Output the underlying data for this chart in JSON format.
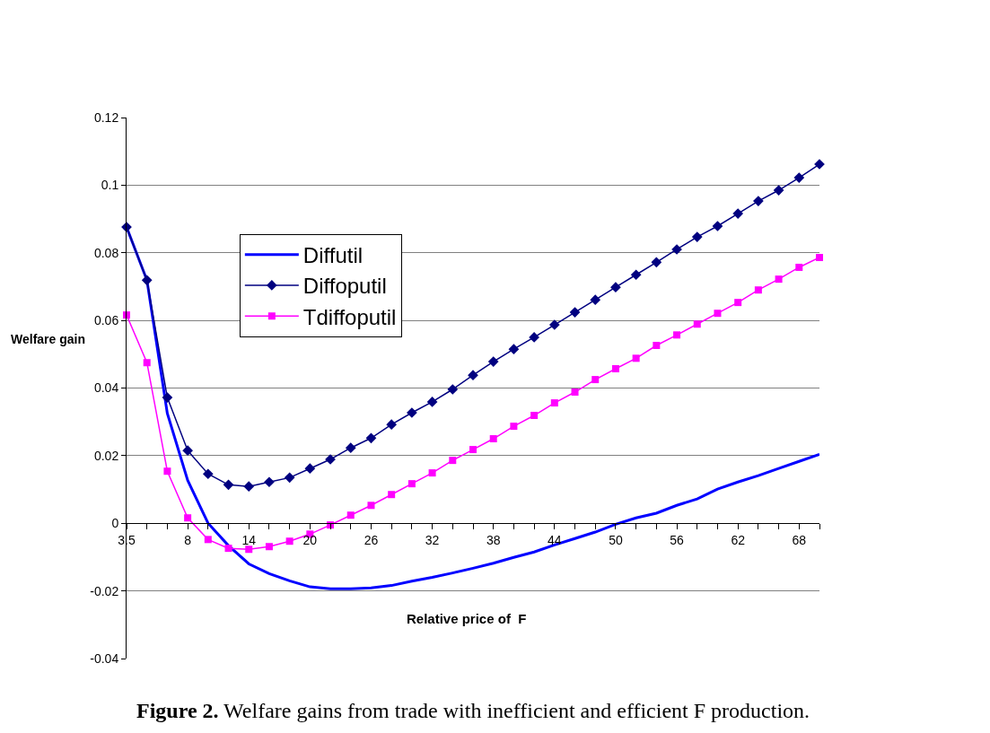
{
  "chart_data": {
    "type": "line",
    "title": "Figure 2.",
    "subtitle": "Welfare gains from trade with inefficient and efficient F production.",
    "xlabel": "Relative price of  F",
    "ylabel": "Welfare gain",
    "categories": [
      "3.5",
      null,
      null,
      "8",
      null,
      null,
      "14",
      null,
      null,
      "20",
      null,
      null,
      "26",
      null,
      null,
      "32",
      null,
      null,
      "38",
      null,
      null,
      "44",
      null,
      null,
      "50",
      null,
      null,
      "56",
      null,
      null,
      "62",
      null,
      null,
      "68",
      null
    ],
    "ylim": [
      -0.04,
      0.12
    ],
    "yticks": [
      -0.04,
      -0.02,
      0,
      0.02,
      0.04,
      0.06,
      0.08,
      0.1,
      0.12
    ],
    "grid": "y",
    "legend": "center left",
    "series": [
      {
        "name": "Diffutil",
        "color": "#0000ff",
        "marker": "none",
        "values": [
          0.0876,
          0.0719,
          0.0325,
          0.0127,
          0.0,
          -0.0066,
          -0.012,
          -0.0149,
          -0.017,
          -0.0188,
          -0.0194,
          -0.0194,
          -0.0191,
          -0.0184,
          -0.0171,
          -0.016,
          -0.0147,
          -0.0133,
          -0.0118,
          -0.0101,
          -0.0085,
          -0.0064,
          -0.0045,
          -0.0026,
          -0.0003,
          0.0016,
          0.003,
          0.0053,
          0.0072,
          0.0101,
          0.0122,
          0.0141,
          0.0162,
          0.0183,
          0.0204
        ]
      },
      {
        "name": "Diffoputil",
        "color": "#000080",
        "marker": "diamond",
        "values": [
          0.0876,
          0.0719,
          0.0372,
          0.0215,
          0.0146,
          0.0114,
          0.0109,
          0.0122,
          0.0135,
          0.0162,
          0.0189,
          0.0223,
          0.0252,
          0.0292,
          0.0327,
          0.0359,
          0.0396,
          0.0438,
          0.0478,
          0.0515,
          0.055,
          0.0587,
          0.0624,
          0.0661,
          0.0698,
          0.0735,
          0.0772,
          0.081,
          0.0847,
          0.0879,
          0.0916,
          0.0953,
          0.0985,
          0.1022,
          0.1062
        ]
      },
      {
        "name": "Tdiffoputil",
        "color": "#ff00ff",
        "marker": "square",
        "values": [
          0.0616,
          0.0475,
          0.0154,
          0.0016,
          -0.0048,
          -0.0074,
          -0.0077,
          -0.0069,
          -0.0053,
          -0.0032,
          -0.0005,
          0.0024,
          0.0053,
          0.0085,
          0.0117,
          0.0149,
          0.0186,
          0.0218,
          0.025,
          0.0287,
          0.0319,
          0.0356,
          0.0388,
          0.0425,
          0.0457,
          0.0488,
          0.0526,
          0.0557,
          0.0589,
          0.0621,
          0.0653,
          0.069,
          0.0722,
          0.0757,
          0.0786
        ]
      }
    ]
  }
}
